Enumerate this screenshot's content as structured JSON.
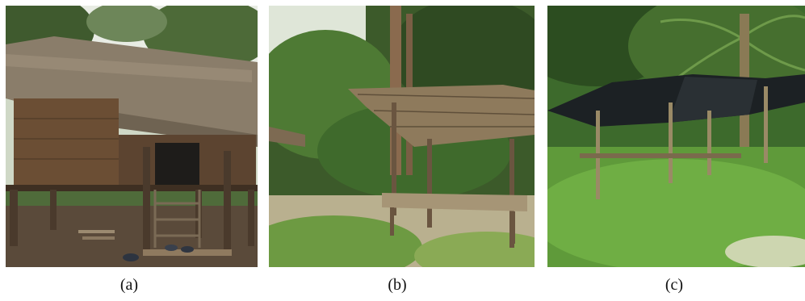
{
  "figure": {
    "panels": [
      {
        "caption": "(a)",
        "subject": "thatched-hut-on-stilts"
      },
      {
        "caption": "(b)",
        "subject": "open-thatched-shelter"
      },
      {
        "caption": "(c)",
        "subject": "tarp-covered-shelter"
      }
    ]
  }
}
